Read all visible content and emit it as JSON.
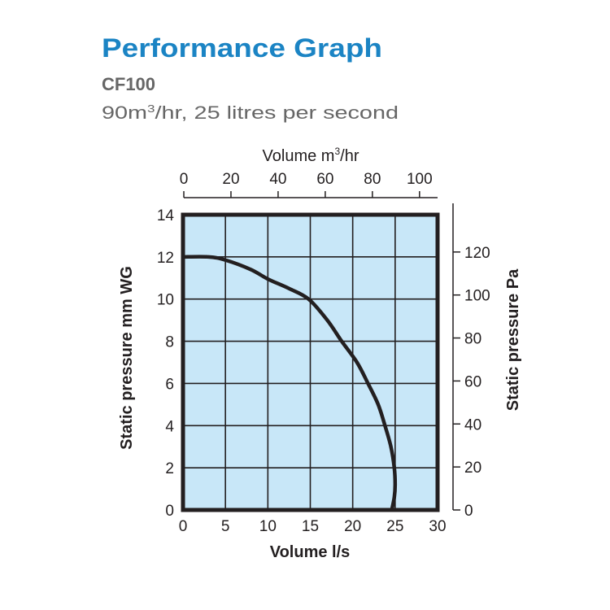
{
  "header": {
    "title": "Performance Graph",
    "model": "CF100",
    "subtitle_pre": "90m",
    "subtitle_sup": "3",
    "subtitle_post": "/hr, 25 litres per second"
  },
  "colors": {
    "title": "#1b84c4",
    "text_gray": "#666666",
    "plot_fill": "#c8e7f8",
    "ink": "#231f20"
  },
  "chart_data": {
    "type": "line",
    "title": "",
    "xlabel": "Volume l/s",
    "ylabel": "Static pressure mm WG",
    "x2label_pre": "Volume m",
    "x2label_sup": "3",
    "x2label_post": "/hr",
    "y2label": "Static pressure Pa",
    "xlim": [
      0,
      30
    ],
    "ylim": [
      0,
      14
    ],
    "x2lim": [
      0,
      108
    ],
    "y2lim": [
      0,
      137
    ],
    "grid": true,
    "xticks": [
      "0",
      "5",
      "10",
      "15",
      "20",
      "25",
      "30"
    ],
    "yticks": [
      "0",
      "2",
      "4",
      "6",
      "8",
      "10",
      "12",
      "14"
    ],
    "x2ticks": [
      "0",
      "20",
      "40",
      "60",
      "80",
      "100"
    ],
    "y2ticks": [
      "0",
      "20",
      "40",
      "60",
      "80",
      "100",
      "120"
    ],
    "series": [
      {
        "x": [
          0,
          3,
          5,
          8,
          10,
          12.5,
          14.8,
          17,
          18.7,
          20.5,
          21.8,
          23,
          23.8,
          24.5,
          24.9,
          25.0,
          24.9,
          24.6
        ],
        "y": [
          12,
          12,
          11.85,
          11.4,
          10.95,
          10.5,
          10,
          9,
          8,
          7,
          6,
          5,
          4,
          3,
          2,
          1.2,
          0.6,
          0
        ]
      }
    ]
  }
}
